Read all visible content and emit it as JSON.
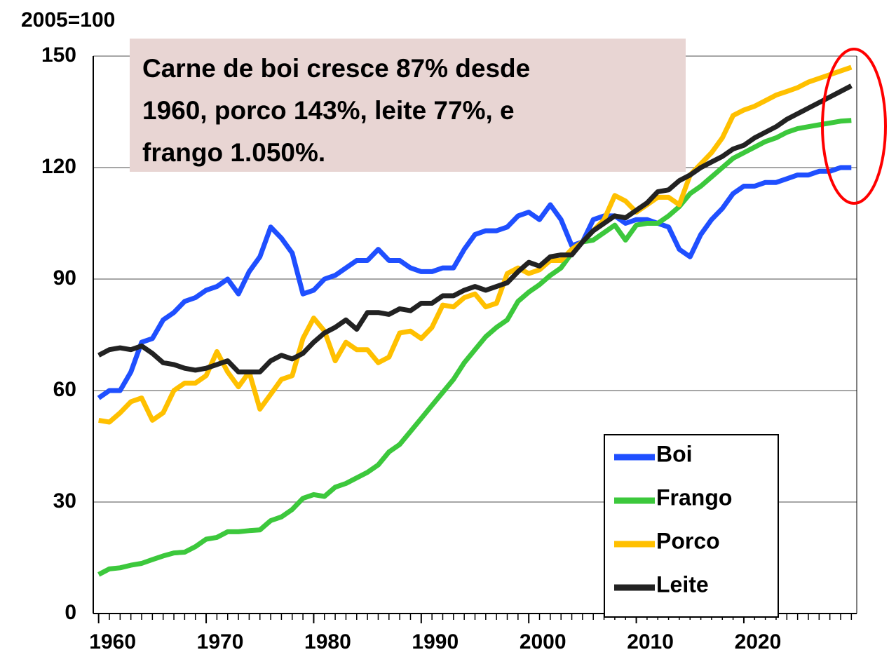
{
  "chart_data": {
    "type": "line",
    "ylabel": "2005=100",
    "annotation": [
      "Carne de boi cresce 87% desde",
      "1960, porco 143%, leite 77%, e",
      "frango 1.050%."
    ],
    "x": [
      1960,
      1961,
      1962,
      1963,
      1964,
      1965,
      1966,
      1967,
      1968,
      1969,
      1970,
      1971,
      1972,
      1973,
      1974,
      1975,
      1976,
      1977,
      1978,
      1979,
      1980,
      1981,
      1982,
      1983,
      1984,
      1985,
      1986,
      1987,
      1988,
      1989,
      1990,
      1991,
      1992,
      1993,
      1994,
      1995,
      1996,
      1997,
      1998,
      1999,
      2000,
      2001,
      2002,
      2003,
      2004,
      2005,
      2006,
      2007,
      2008,
      2009,
      2010,
      2011,
      2012,
      2013,
      2014,
      2015,
      2016,
      2017,
      2018,
      2019,
      2020,
      2021,
      2022,
      2023,
      2024,
      2025,
      2026,
      2027,
      2028,
      2029,
      2030
    ],
    "xlim": [
      1959.5,
      2030.5
    ],
    "xticks": [
      1960,
      1970,
      1980,
      1990,
      2000,
      2010,
      2020
    ],
    "ylim": [
      0,
      150
    ],
    "yticks": [
      0,
      30,
      60,
      90,
      120,
      150
    ],
    "grid": true,
    "legend": "lower right",
    "series": [
      {
        "name": "Boi",
        "color": "#1f4fff",
        "values": [
          58,
          60,
          60,
          65,
          73,
          74,
          79,
          81,
          84,
          85,
          87,
          88,
          90,
          86,
          92,
          96,
          104,
          101,
          97,
          86,
          87,
          90,
          91,
          93,
          95,
          95,
          98,
          95,
          95,
          93,
          92,
          92,
          93,
          93,
          98,
          102,
          103,
          103,
          104,
          107,
          108,
          106,
          110,
          106,
          99,
          100,
          106,
          107,
          107,
          105,
          106,
          106,
          105,
          104,
          98,
          96,
          102,
          106,
          109,
          113,
          115,
          115,
          116,
          116,
          117,
          118,
          118,
          119,
          119,
          120,
          120
        ]
      },
      {
        "name": "Frango",
        "color": "#3cc83c",
        "values": [
          10.5,
          12,
          12.3,
          13,
          13.5,
          14.5,
          15.5,
          16.3,
          16.5,
          18,
          20,
          20.5,
          22,
          22,
          22.3,
          22.5,
          25,
          26,
          28,
          31,
          32,
          31.5,
          34,
          35,
          36.5,
          38,
          40,
          43.5,
          45.5,
          49,
          52.5,
          56,
          59.5,
          63,
          67.5,
          71,
          74.5,
          77,
          79,
          84,
          86.5,
          88.5,
          91,
          93,
          97,
          100,
          100.5,
          102.5,
          104.5,
          100.5,
          104.5,
          105,
          105,
          107,
          109.5,
          113,
          115,
          117.5,
          120,
          122.5,
          124,
          125.5,
          127,
          128,
          129.5,
          130.5,
          131,
          131.5,
          132,
          132.5,
          132.7
        ]
      },
      {
        "name": "Porco",
        "color": "#ffc000",
        "values": [
          52,
          51.5,
          54,
          57,
          58,
          52,
          54,
          60,
          62,
          62,
          64,
          70.5,
          65,
          61,
          65,
          55,
          59,
          63,
          64,
          74,
          79.5,
          76,
          68,
          73,
          71,
          71,
          67.5,
          69,
          75.5,
          76,
          74,
          77,
          83,
          82.5,
          85,
          86,
          82.5,
          83.5,
          91.5,
          93,
          91.5,
          92.5,
          95,
          95,
          98,
          100,
          103,
          106,
          112.5,
          111,
          108,
          110,
          112,
          112,
          110,
          118,
          121,
          124,
          128,
          134,
          135.5,
          136.5,
          138,
          139.5,
          140.5,
          141.5,
          143,
          144,
          145,
          146,
          147
        ]
      },
      {
        "name": "Leite",
        "color": "#222222",
        "values": [
          69.5,
          71,
          71.5,
          71,
          72,
          70,
          67.5,
          67,
          66,
          65.5,
          66,
          67,
          68,
          65,
          65,
          65,
          68,
          69.5,
          68.5,
          70,
          73,
          75.5,
          77,
          79,
          76.5,
          81,
          81,
          80.5,
          82,
          81.5,
          83.5,
          83.5,
          85.5,
          85.5,
          87,
          88,
          87,
          88,
          89,
          92,
          94.5,
          93.5,
          96,
          96.5,
          96.5,
          100,
          103,
          105,
          107,
          106.5,
          108.5,
          110.5,
          113.5,
          114,
          116.5,
          118,
          120,
          121.5,
          123,
          125,
          126,
          128,
          129.5,
          131,
          133,
          134.5,
          136,
          137.5,
          139,
          140.5,
          142
        ]
      }
    ]
  }
}
